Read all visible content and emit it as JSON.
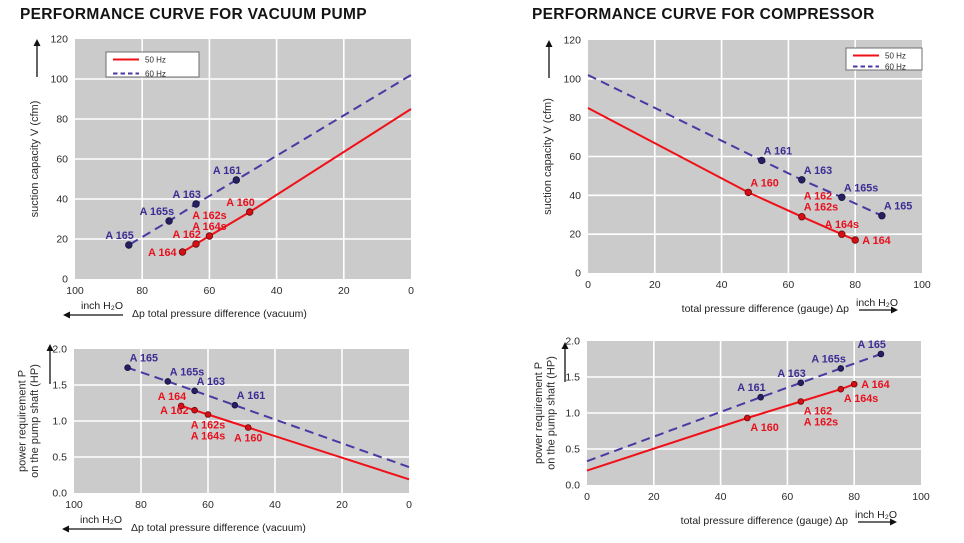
{
  "titles": {
    "vacuum": "PERFORMANCE CURVE FOR VACUUM PUMP",
    "compressor": "PERFORMANCE CURVE FOR COMPRESSOR"
  },
  "legend_labels": [
    "50 Hz",
    "60 Hz"
  ],
  "colors": {
    "hz50": "#f01018",
    "hz50_marker": "#d80e14",
    "hz50_marker_edge": "#6b0a0a",
    "hz50_label": "#e8101d",
    "hz60": "#473aa3",
    "hz60_marker": "#262061",
    "hz60_marker_edge": "#14103f",
    "hz60_label": "#3b2d93",
    "plot_bg": "#cbcbcb",
    "grid": "#ffffff",
    "axis_text": "#2b2b2b",
    "caption_text": "#1d1d1d",
    "arrow": "#111111",
    "legend_border": "#6f6f6f"
  },
  "chart_data": [
    {
      "id": "vacuum_suction",
      "type": "line",
      "panel_title": "PERFORMANCE CURVE FOR VACUUM PUMP",
      "x_axis": {
        "min": 0,
        "max": 100,
        "ticks": [
          0,
          20,
          40,
          60,
          80,
          100
        ],
        "tick_labels": [
          "0",
          "20",
          "40",
          "60",
          "80",
          "100"
        ],
        "reversed": true,
        "symbol": "Δp",
        "caption": "total pressure difference (vacuum)",
        "unit": "inch H₂O",
        "arrow": "left"
      },
      "y_axis": {
        "min": 0,
        "max": 120,
        "ticks": [
          0,
          20,
          40,
          60,
          80,
          100,
          120
        ],
        "tick_labels": [
          "0",
          "20",
          "40",
          "60",
          "80",
          "100",
          "120"
        ],
        "label": "suction capacity V (cfm)"
      },
      "legend": {
        "position": "top-left",
        "entries": [
          "50 Hz",
          "60 Hz"
        ]
      },
      "series": [
        {
          "name": "50 Hz",
          "key": "hz50",
          "style": "solid",
          "points": [
            [
              0,
              85
            ],
            [
              48,
              33.5
            ],
            [
              60,
              21.5
            ],
            [
              64,
              17.5
            ],
            [
              68,
              13.5
            ]
          ],
          "labels": [
            {
              "x": 48,
              "y": 33.5,
              "text": "A 160",
              "pos": "up-left"
            },
            {
              "x": 60,
              "y": 21.5,
              "text": "A 162s|A 164s",
              "pos": "up"
            },
            {
              "x": 64,
              "y": 17.5,
              "text": "A 162",
              "pos": "up-left"
            },
            {
              "x": 68,
              "y": 13.5,
              "text": "A 164",
              "pos": "left"
            }
          ]
        },
        {
          "name": "60 Hz",
          "key": "hz60",
          "style": "dashed",
          "points": [
            [
              0,
              102
            ],
            [
              52,
              49.5
            ],
            [
              64,
              37.5
            ],
            [
              72,
              29
            ],
            [
              84,
              17
            ]
          ],
          "labels": [
            {
              "x": 52,
              "y": 49.5,
              "text": "A 161",
              "pos": "up-left"
            },
            {
              "x": 64,
              "y": 37.5,
              "text": "A 163",
              "pos": "up-left"
            },
            {
              "x": 72,
              "y": 29,
              "text": "A 165s",
              "pos": "up-left"
            },
            {
              "x": 84,
              "y": 17,
              "text": "A 165",
              "pos": "up-left"
            }
          ]
        }
      ]
    },
    {
      "id": "compressor_suction",
      "type": "line",
      "panel_title": "PERFORMANCE CURVE FOR COMPRESSOR",
      "x_axis": {
        "min": 0,
        "max": 100,
        "ticks": [
          0,
          20,
          40,
          60,
          80,
          100
        ],
        "tick_labels": [
          "0",
          "20",
          "40",
          "60",
          "80",
          "100"
        ],
        "reversed": false,
        "symbol": "Δp",
        "caption": "total pressure difference (gauge)",
        "unit": "inch H₂O",
        "arrow": "right"
      },
      "y_axis": {
        "min": 0,
        "max": 120,
        "ticks": [
          0,
          20,
          40,
          60,
          80,
          100,
          120
        ],
        "tick_labels": [
          "0",
          "20",
          "40",
          "60",
          "80",
          "100",
          "120"
        ],
        "label": "suction capacity V (cfm)"
      },
      "legend": {
        "position": "top-right",
        "entries": [
          "50 Hz",
          "60 Hz"
        ]
      },
      "series": [
        {
          "name": "50 Hz",
          "key": "hz50",
          "style": "solid",
          "points": [
            [
              0,
              85
            ],
            [
              48,
              41.5
            ],
            [
              64,
              29
            ],
            [
              76,
              20
            ],
            [
              80,
              17
            ]
          ],
          "labels": [
            {
              "x": 48,
              "y": 41.5,
              "text": "A 160",
              "pos": "up-right"
            },
            {
              "x": 64,
              "y": 29,
              "text": "A 162|A 162s",
              "pos": "up-right"
            },
            {
              "x": 76,
              "y": 20,
              "text": "A 164s",
              "pos": "up"
            },
            {
              "x": 80,
              "y": 17,
              "text": "A 164",
              "pos": "right"
            }
          ]
        },
        {
          "name": "60 Hz",
          "key": "hz60",
          "style": "dashed",
          "points": [
            [
              0,
              102
            ],
            [
              52,
              58
            ],
            [
              64,
              48
            ],
            [
              76,
              39
            ],
            [
              88,
              29.5
            ]
          ],
          "labels": [
            {
              "x": 52,
              "y": 58,
              "text": "A 161",
              "pos": "up-right"
            },
            {
              "x": 64,
              "y": 48,
              "text": "A 163",
              "pos": "up-right"
            },
            {
              "x": 76,
              "y": 39,
              "text": "A 165s",
              "pos": "up-right"
            },
            {
              "x": 88,
              "y": 29.5,
              "text": "A 165",
              "pos": "up-right"
            }
          ]
        }
      ]
    },
    {
      "id": "vacuum_power",
      "type": "line",
      "panel_title": "PERFORMANCE CURVE FOR VACUUM PUMP",
      "x_axis": {
        "min": 0,
        "max": 100,
        "ticks": [
          0,
          20,
          40,
          60,
          80,
          100
        ],
        "tick_labels": [
          "0",
          "20",
          "40",
          "60",
          "80",
          "100"
        ],
        "reversed": true,
        "symbol": "Δp",
        "caption": "total pressure difference (vacuum)",
        "unit": "inch H₂O",
        "arrow": "left"
      },
      "y_axis": {
        "min": 0,
        "max": 2,
        "ticks": [
          0,
          0.5,
          1,
          1.5,
          2
        ],
        "tick_labels": [
          "0.0",
          "0.5",
          "1.0",
          "1.5",
          "2.0"
        ],
        "label": "power requirement P|on the pump shaft (HP)"
      },
      "legend": null,
      "series": [
        {
          "name": "50 Hz",
          "key": "hz50",
          "style": "solid",
          "points": [
            [
              0,
              0.19
            ],
            [
              48,
              0.91
            ],
            [
              60,
              1.09
            ],
            [
              64,
              1.15
            ],
            [
              68,
              1.21
            ]
          ],
          "labels": [
            {
              "x": 48,
              "y": 0.91,
              "text": "A 160",
              "pos": "down"
            },
            {
              "x": 60,
              "y": 1.09,
              "text": "A 162s|A 164s",
              "pos": "down"
            },
            {
              "x": 64,
              "y": 1.15,
              "text": "A 162",
              "pos": "left"
            },
            {
              "x": 68,
              "y": 1.21,
              "text": "A 164",
              "pos": "up-left"
            }
          ]
        },
        {
          "name": "60 Hz",
          "key": "hz60",
          "style": "dashed",
          "points": [
            [
              0,
              0.36
            ],
            [
              52,
              1.22
            ],
            [
              64,
              1.42
            ],
            [
              72,
              1.55
            ],
            [
              84,
              1.74
            ]
          ],
          "labels": [
            {
              "x": 52,
              "y": 1.22,
              "text": "A 161",
              "pos": "up-right"
            },
            {
              "x": 64,
              "y": 1.42,
              "text": "A 163",
              "pos": "up-right"
            },
            {
              "x": 72,
              "y": 1.55,
              "text": "A 165s",
              "pos": "up-right"
            },
            {
              "x": 84,
              "y": 1.74,
              "text": "A 165",
              "pos": "up-right"
            }
          ]
        }
      ]
    },
    {
      "id": "compressor_power",
      "type": "line",
      "panel_title": "PERFORMANCE CURVE FOR COMPRESSOR",
      "x_axis": {
        "min": 0,
        "max": 100,
        "ticks": [
          0,
          20,
          40,
          60,
          80,
          100
        ],
        "tick_labels": [
          "0",
          "20",
          "40",
          "60",
          "80",
          "100"
        ],
        "reversed": false,
        "symbol": "Δp",
        "caption": "total pressure difference (gauge)",
        "unit": "inch H₂O",
        "arrow": "right"
      },
      "y_axis": {
        "min": 0,
        "max": 2,
        "ticks": [
          0,
          0.5,
          1,
          1.5,
          2
        ],
        "tick_labels": [
          "0.0",
          "0.5",
          "1.0",
          "1.5",
          "2.0"
        ],
        "label": "power requirement P|on the pump shaft (HP)"
      },
      "legend": null,
      "series": [
        {
          "name": "50 Hz",
          "key": "hz50",
          "style": "solid",
          "points": [
            [
              0,
              0.2
            ],
            [
              48,
              0.93
            ],
            [
              64,
              1.16
            ],
            [
              76,
              1.33
            ],
            [
              80,
              1.4
            ]
          ],
          "labels": [
            {
              "x": 48,
              "y": 0.93,
              "text": "A 160",
              "pos": "down-right"
            },
            {
              "x": 64,
              "y": 1.16,
              "text": "A 162|A 162s",
              "pos": "down-right"
            },
            {
              "x": 76,
              "y": 1.33,
              "text": "A 164s",
              "pos": "down-right"
            },
            {
              "x": 80,
              "y": 1.4,
              "text": "A 164",
              "pos": "right"
            }
          ]
        },
        {
          "name": "60 Hz",
          "key": "hz60",
          "style": "dashed",
          "points": [
            [
              0,
              0.33
            ],
            [
              52,
              1.22
            ],
            [
              64,
              1.42
            ],
            [
              76,
              1.62
            ],
            [
              88,
              1.82
            ]
          ],
          "labels": [
            {
              "x": 52,
              "y": 1.22,
              "text": "A 161",
              "pos": "up-left"
            },
            {
              "x": 64,
              "y": 1.42,
              "text": "A 163",
              "pos": "up-left"
            },
            {
              "x": 76,
              "y": 1.62,
              "text": "A 165s",
              "pos": "up-left"
            },
            {
              "x": 88,
              "y": 1.82,
              "text": "A 165",
              "pos": "up-left"
            }
          ]
        }
      ]
    }
  ]
}
